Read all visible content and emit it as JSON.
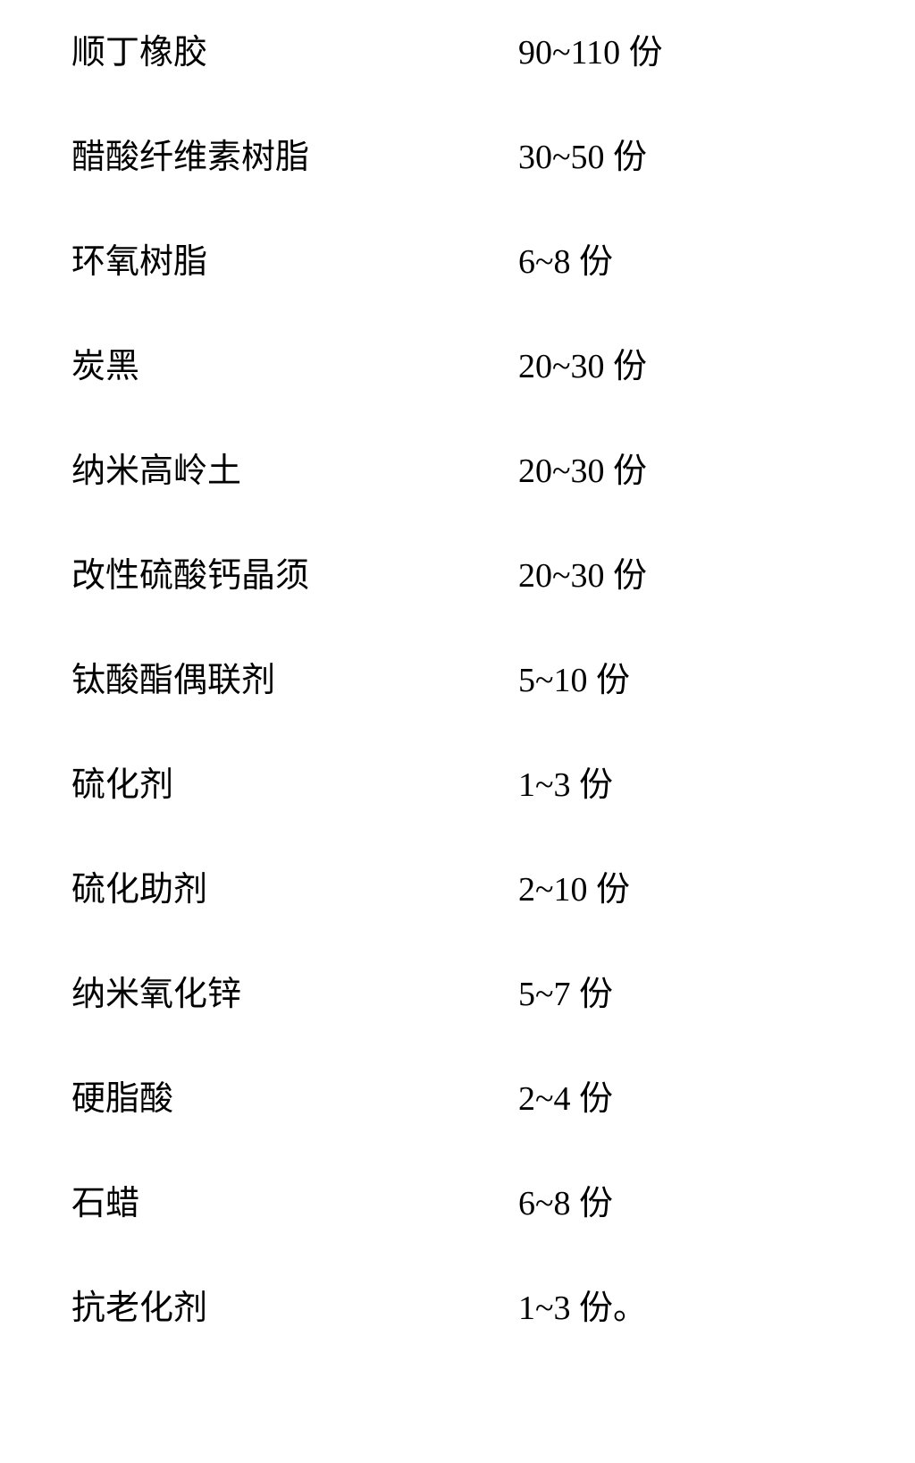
{
  "ingredients": [
    {
      "name": "顺丁橡胶",
      "amount": "90~110 份"
    },
    {
      "name": "醋酸纤维素树脂",
      "amount": "30~50 份"
    },
    {
      "name": "环氧树脂",
      "amount": "6~8 份"
    },
    {
      "name": "炭黑",
      "amount": "20~30 份"
    },
    {
      "name": "纳米高岭土",
      "amount": "20~30 份"
    },
    {
      "name": "改性硫酸钙晶须",
      "amount": "20~30 份"
    },
    {
      "name": "钛酸酯偶联剂",
      "amount": "5~10 份"
    },
    {
      "name": "硫化剂",
      "amount": "1~3 份"
    },
    {
      "name": "硫化助剂",
      "amount": "2~10 份"
    },
    {
      "name": "纳米氧化锌",
      "amount": "5~7 份"
    },
    {
      "name": "硬脂酸",
      "amount": "2~4 份"
    },
    {
      "name": "石蜡",
      "amount": "6~8 份"
    },
    {
      "name": "抗老化剂",
      "amount": "1~3 份。"
    }
  ],
  "styling": {
    "background_color": "#ffffff",
    "text_color": "#000000",
    "font_family": "SimSun",
    "font_size": 38,
    "row_gap": 79,
    "name_column_width": 500,
    "page_padding_horizontal": 80,
    "page_padding_vertical": 40
  }
}
